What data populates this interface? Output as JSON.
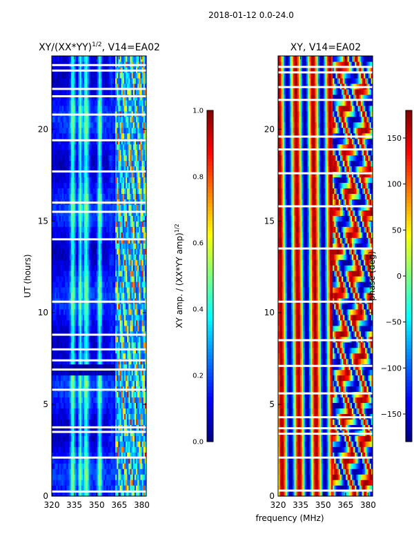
{
  "figure": {
    "suptitle": "2018-01-12 0.0-24.0",
    "shared_xlabel": "frequency (MHz)"
  },
  "chart_data": [
    {
      "type": "heatmap",
      "title_main": "XY/(XX*YY)",
      "title_sup": "1/2",
      "title_tail": ", V14=EA02",
      "xlabel": "frequency (MHz)",
      "ylabel": "UT (hours)",
      "xlim": [
        320,
        383
      ],
      "ylim": [
        0,
        24
      ],
      "xticks": [
        320,
        335,
        350,
        365,
        380
      ],
      "yticks": [
        0,
        5,
        10,
        15,
        20
      ],
      "colorbar": {
        "label_main": "XY amp. / (XX*YY amp)",
        "label_sup": "1/2",
        "range": [
          0.0,
          1.0
        ],
        "ticks": [
          "0.0",
          "0.2",
          "0.4",
          "0.6",
          "0.8",
          "1.0"
        ],
        "tick_values": [
          0.0,
          0.2,
          0.4,
          0.6,
          0.8,
          1.0
        ]
      },
      "colormap": "jet",
      "gaps_ut": [
        0.25,
        2.1,
        3.5,
        3.75,
        5.8,
        6.9,
        7.4,
        8.0,
        8.8,
        10.6,
        14.0,
        15.5,
        16.0,
        17.7,
        19.4,
        20.8,
        21.8,
        22.2,
        23.2,
        23.5
      ],
      "low_band_ut": [
        6.5,
        7.3
      ]
    },
    {
      "type": "heatmap",
      "title_main": "XY, V14=EA02",
      "xlabel": "frequency (MHz)",
      "ylabel": "",
      "xlim": [
        320,
        383
      ],
      "ylim": [
        0,
        24
      ],
      "xticks": [
        320,
        335,
        350,
        365,
        380
      ],
      "yticks": [
        0,
        5,
        10,
        15,
        20
      ],
      "colorbar": {
        "label_main": "phase (deg)",
        "range": [
          -180,
          180
        ],
        "ticks": [
          "−150",
          "−100",
          "−50",
          "0",
          "50",
          "100",
          "150"
        ],
        "tick_values": [
          -150,
          -100,
          -50,
          0,
          50,
          100,
          150
        ]
      },
      "colormap": "jet",
      "gaps_ut": [
        0.3,
        2.1,
        3.4,
        3.7,
        4.3,
        5.6,
        7.1,
        8.5,
        10.6,
        13.5,
        15.8,
        17.6,
        18.9,
        19.6,
        21.6,
        22.3,
        23.1,
        23.4
      ]
    }
  ]
}
